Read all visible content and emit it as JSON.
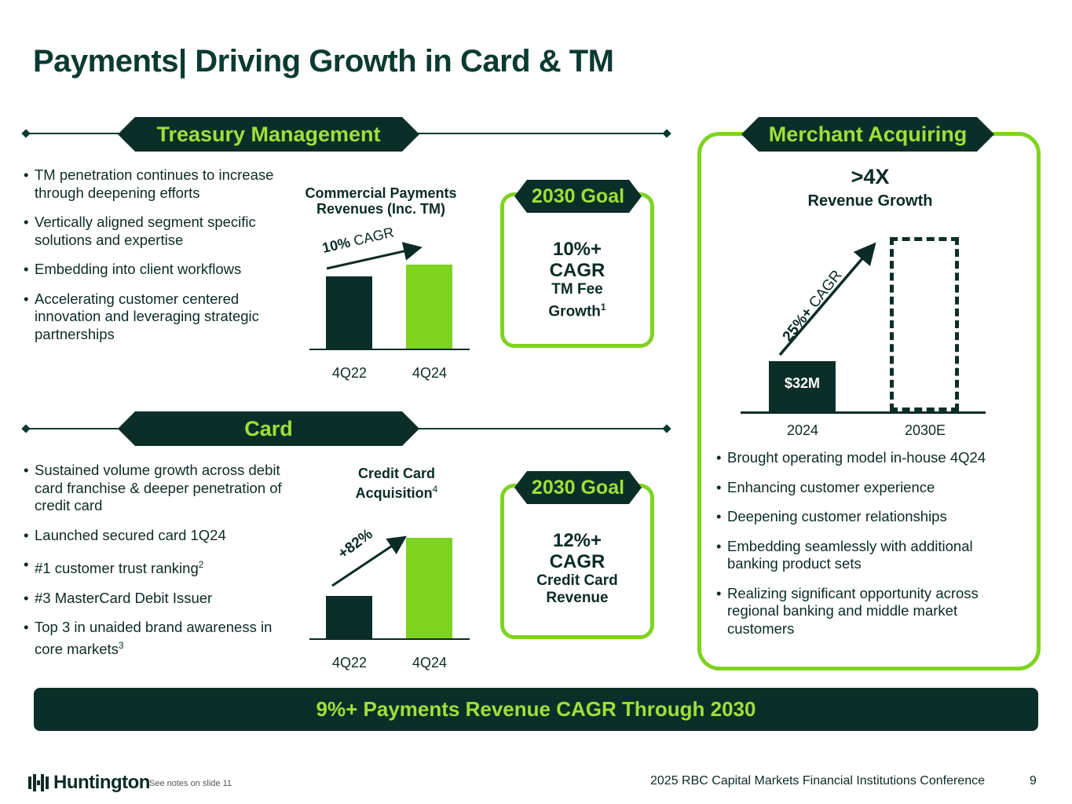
{
  "title": "Payments| Driving Growth in Card & TM",
  "treasury": {
    "banner": "Treasury Management",
    "bullets": [
      "TM penetration continues to increase through deepening efforts",
      "Vertically aligned segment specific solutions and expertise",
      "Embedding into client workflows",
      "Accelerating customer centered innovation and leveraging strategic partnerships"
    ],
    "chart_title": "Commercial Payments Revenues (Inc. TM)",
    "cagr_bold": "10%",
    "cagr_rest": " CAGR",
    "goal": {
      "banner": "2030 Goal",
      "big": "10%+\nCAGR",
      "sub": "TM Fee",
      "sub2": "Growth",
      "sup": "1"
    }
  },
  "card": {
    "banner": "Card",
    "bullets": [
      {
        "text": "Sustained volume growth across debit card franchise & deeper penetration of credit card",
        "sup": ""
      },
      {
        "text": "Launched secured card 1Q24",
        "sup": ""
      },
      {
        "text": "#1 customer trust ranking",
        "sup": "2"
      },
      {
        "text": "#3 MasterCard Debit Issuer",
        "sup": ""
      },
      {
        "text": "Top 3 in unaided brand awareness in core markets",
        "sup": "3"
      }
    ],
    "chart_title": "Credit Card",
    "chart_title2": "Acquisition",
    "chart_title_sup": "4",
    "growth_label": "+82%",
    "goal": {
      "banner": "2030 Goal",
      "big": "12%+\nCAGR",
      "sub": "Credit Card\nRevenue"
    }
  },
  "merchant": {
    "banner": "Merchant Acquiring",
    "headline": ">4X",
    "subheadline": "Revenue Growth",
    "cagr_bold": "25%+",
    "cagr_rest": " CAGR",
    "bar_label": "$32M",
    "bullets": [
      "Brought operating model in-house 4Q24",
      "Enhancing customer experience",
      "Deepening customer relationships",
      "Embedding seamlessly with additional banking product sets",
      "Realizing significant opportunity across regional banking and middle market customers"
    ]
  },
  "footer_banner": "9%+ Payments Revenue CAGR Through 2030",
  "logo_text": "Huntington",
  "notes": "See notes on slide 11",
  "conference": "2025 RBC Capital Markets Financial Institutions Conference",
  "page_number": "9",
  "colors": {
    "dark_green": "#0b2f28",
    "lime": "#7ed321",
    "banner_text": "#9ee03a"
  },
  "chart_data": [
    {
      "type": "bar",
      "title": "Commercial Payments Revenues (Inc. TM)",
      "categories": [
        "4Q22",
        "4Q24"
      ],
      "values": [
        0.79,
        0.95
      ],
      "value_scale": "relative, no axis printed",
      "annotation": "10% CAGR"
    },
    {
      "type": "bar",
      "title": "Credit Card Acquisition",
      "categories": [
        "4Q22",
        "4Q24"
      ],
      "values": [
        1.0,
        1.82
      ],
      "value_scale": "relative, no axis printed",
      "annotation": "+82%"
    },
    {
      "type": "bar",
      "title": ">4X Revenue Growth",
      "categories": [
        "2024",
        "2030E"
      ],
      "values": [
        32,
        128
      ],
      "value_scale": "$M; 2030E shown as dashed outline",
      "data_labels": [
        "$32M",
        ""
      ],
      "annotation": "25%+ CAGR"
    }
  ]
}
